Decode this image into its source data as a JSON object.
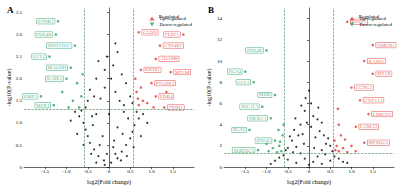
{
  "chart_data": [
    {
      "type": "scatter",
      "title": "A",
      "x_label": "log2(Fold change)",
      "y_label": "-log10(P-value)",
      "legend_title": "Regulated",
      "legend": "upper right",
      "grid": false,
      "xlim": [
        -2,
        2
      ],
      "xticks": [
        -1.5,
        {
          "value": -1,
          "label": "-1.0"
        },
        -0.5,
        0,
        0.5,
        {
          "value": 1,
          "label": "1.0"
        },
        1.5
      ],
      "ylim": [
        0,
        3.6
      ],
      "yticks": [
        0,
        0.5,
        {
          "value": 1,
          "label": "1.0"
        },
        1.5,
        {
          "value": 2,
          "label": "2.0"
        },
        2.5,
        {
          "value": 3,
          "label": "3.0"
        },
        3.5
      ],
      "thresholds": {
        "x": [
          -0.58,
          0.58
        ],
        "y": 1.3
      },
      "series": [
        {
          "color": "#000000",
          "x": [
            -0.1,
            0.05,
            0.2,
            -0.25,
            0.3,
            -0.35,
            0.4,
            -0.45,
            0.5,
            -0.5,
            0.55,
            -0.55,
            0.6,
            -0.6,
            0.45,
            -0.4,
            0.35,
            -0.3,
            0.2,
            -0.15,
            0.1,
            -0.05,
            0.7,
            -0.7,
            0.8,
            -0.8,
            0.25,
            -0.2,
            0.15,
            -0.1,
            0.05,
            0.3,
            -0.3,
            0.4,
            -0.45,
            0.5,
            -0.5,
            0.1,
            -0.05,
            0.2,
            -0.25,
            0.0,
            0.12,
            -0.22,
            0.32,
            -0.38,
            0.65,
            -0.65,
            0.9,
            -0.9,
            0.28,
            -0.3,
            0.15,
            -0.12,
            0.42,
            -0.42,
            0.58,
            -0.6,
            0.75,
            -0.75,
            0.35,
            -0.35,
            0.55,
            -0.55,
            0.15,
            -0.1
          ],
          "values": [
            0.05,
            0.1,
            0.2,
            0.25,
            0.35,
            0.4,
            0.5,
            0.55,
            0.65,
            0.7,
            0.8,
            0.85,
            0.95,
            1.0,
            1.1,
            1.15,
            1.25,
            1.2,
            0.9,
            0.7,
            0.45,
            0.3,
            1.1,
            1.15,
            1.2,
            1.25,
            1.5,
            1.55,
            1.7,
            1.8,
            2.0,
            2.1,
            2.0,
            1.9,
            1.75,
            1.6,
            1.5,
            2.3,
            2.5,
            2.6,
            2.4,
            1.2,
            0.6,
            0.5,
            0.75,
            0.95,
            1.25,
            1.28,
            1.0,
            1.05,
            0.15,
            0.1,
            0.3,
            0.15,
            0.25,
            0.3,
            0.45,
            0.5,
            0.7,
            0.75,
            1.4,
            1.6,
            1.45,
            1.35,
            2.8,
            2.2
          ]
        },
        {
          "name": "Up-regulated",
          "color": "#e0403a",
          "x": [
            1.75,
            0.7,
            1.2,
            1.1,
            0.75,
            1.45,
            1.0,
            1.1,
            1.3,
            0.7,
            0.8,
            0.65,
            0.9,
            0.75,
            1.05,
            0.62,
            1.35,
            0.68
          ],
          "values": [
            3.0,
            3.05,
            2.75,
            2.45,
            2.2,
            2.15,
            1.9,
            1.6,
            1.35,
            1.4,
            1.5,
            1.7,
            1.45,
            1.8,
            1.35,
            2.0,
            1.7,
            1.55
          ],
          "labels": [
            "FEZF1",
            "GLDN",
            "CYP4B1",
            "ADAM8",
            "KRT81",
            "MT1M",
            "PTGER3",
            "PDK4",
            "TNNI1",
            null,
            null,
            null,
            null,
            null,
            null,
            null,
            null,
            null
          ]
        },
        {
          "name": "Down-regulated",
          "color": "#2e9e6b",
          "x": [
            -1.2,
            -1.25,
            -0.8,
            -1.4,
            -0.9,
            -1.0,
            -1.6,
            -1.3,
            -0.7,
            -0.65,
            -0.75,
            -0.85,
            -0.62,
            -1.1,
            -0.95
          ],
          "values": [
            3.3,
            3.0,
            2.75,
            2.5,
            2.25,
            2.0,
            1.6,
            1.4,
            1.35,
            1.6,
            1.9,
            1.5,
            2.1,
            1.7,
            1.35
          ],
          "labels": [
            "ETNK1",
            "PDE4B",
            "HIST1H1C",
            "CCL2",
            "MAGOH",
            "IL18R1",
            "EMP1",
            "MSX1",
            null,
            null,
            null,
            null,
            null,
            null,
            null
          ]
        }
      ]
    },
    {
      "type": "scatter",
      "title": "B",
      "x_label": "log2(Fold change)",
      "y_label": "-log10(P-value)",
      "legend_title": "Regulated",
      "legend": "upper right",
      "grid": false,
      "xlim": [
        -2,
        2
      ],
      "xticks": [
        -1.5,
        {
          "value": -1,
          "label": "-1.0"
        },
        -0.5,
        0,
        0.5,
        {
          "value": 1,
          "label": "1.0"
        },
        1.5
      ],
      "ylim": [
        0,
        15
      ],
      "yticks": [
        0,
        2,
        4,
        6,
        8,
        10,
        12,
        14
      ],
      "thresholds": {
        "x": [
          -0.58,
          0.58
        ],
        "y": 1.3
      },
      "series": [
        {
          "color": "#000000",
          "x": [
            0,
            0.1,
            -0.1,
            0.2,
            -0.2,
            0.3,
            -0.3,
            0.4,
            -0.4,
            0.5,
            -0.5,
            0.15,
            -0.15,
            0.25,
            -0.25,
            0.05,
            -0.05,
            0.1,
            -0.1,
            0.2,
            -0.2,
            0.35,
            -0.35,
            0.45,
            -0.45,
            0.55,
            -0.55,
            0.6,
            -0.6,
            0.7,
            -0.7,
            0.8,
            -0.8,
            0.05,
            0.0,
            -0.08,
            0.3,
            -0.3,
            0.5,
            -0.5,
            0.12,
            -0.12,
            0.38,
            -0.38,
            0.9,
            -0.9,
            0.22,
            -0.18,
            0.3,
            -0.32
          ],
          "values": [
            0.2,
            0.5,
            0.8,
            1.0,
            1.3,
            1.6,
            1.9,
            2.2,
            2.5,
            2.0,
            1.8,
            2.8,
            3.1,
            3.4,
            3.0,
            3.8,
            4.2,
            4.8,
            5.3,
            4.5,
            4.0,
            3.0,
            3.5,
            2.7,
            2.9,
            1.5,
            1.6,
            1.0,
            1.1,
            0.8,
            0.9,
            0.5,
            0.6,
            6.0,
            7.2,
            6.5,
            0.3,
            0.4,
            0.6,
            0.7,
            1.8,
            2.2,
            1.2,
            1.4,
            0.4,
            0.3,
            5.6,
            5.8,
            4.2,
            4.6
          ]
        },
        {
          "name": "Up-regulated",
          "color": "#e0403a",
          "x": [
            0.9,
            1.5,
            1.3,
            1.5,
            1.0,
            1.2,
            1.4,
            1.1,
            1.3,
            0.7,
            0.65,
            0.8,
            0.6,
            0.9,
            0.75,
            1.0,
            0.7,
            0.85,
            0.62,
            1.1,
            0.68
          ],
          "values": [
            13.7,
            11.5,
            10.0,
            8.8,
            7.5,
            6.3,
            5.0,
            3.8,
            2.3,
            1.5,
            2.0,
            1.8,
            2.5,
            1.4,
            3.0,
            2.0,
            4.0,
            2.6,
            1.6,
            1.5,
            5.5
          ],
          "labels": [
            "DEPP1",
            "HMOX1",
            "RASD1",
            "MT1X",
            "CCNG2",
            "CYP1A1",
            "LIMCH1",
            "LAMA3",
            "MFSD2A",
            null,
            null,
            null,
            null,
            null,
            null,
            null,
            null,
            null,
            null,
            null,
            null
          ]
        },
        {
          "name": "Down-regulated",
          "color": "#2e9e6b",
          "x": [
            -1.0,
            -1.5,
            -1.3,
            -0.8,
            -1.1,
            -0.9,
            -1.4,
            -0.8,
            -1.2,
            -0.65,
            -0.7,
            -0.62,
            -0.75,
            -0.85,
            -0.68,
            -0.95,
            -0.6,
            -0.72,
            -1.0
          ],
          "values": [
            11.0,
            9.0,
            8.0,
            6.8,
            5.7,
            4.6,
            3.5,
            2.5,
            1.6,
            1.5,
            2.0,
            3.0,
            1.4,
            1.8,
            2.4,
            1.5,
            4.0,
            3.5,
            2.2
          ],
          "labels": [
            "PDE4B",
            "RGS4",
            "CCL2",
            "MDK",
            "SEL1L3",
            "NKX3-1",
            "RGS2",
            "ZNF43",
            "SERINC5",
            null,
            null,
            null,
            null,
            null,
            null,
            null,
            null,
            null,
            null
          ]
        }
      ]
    }
  ]
}
